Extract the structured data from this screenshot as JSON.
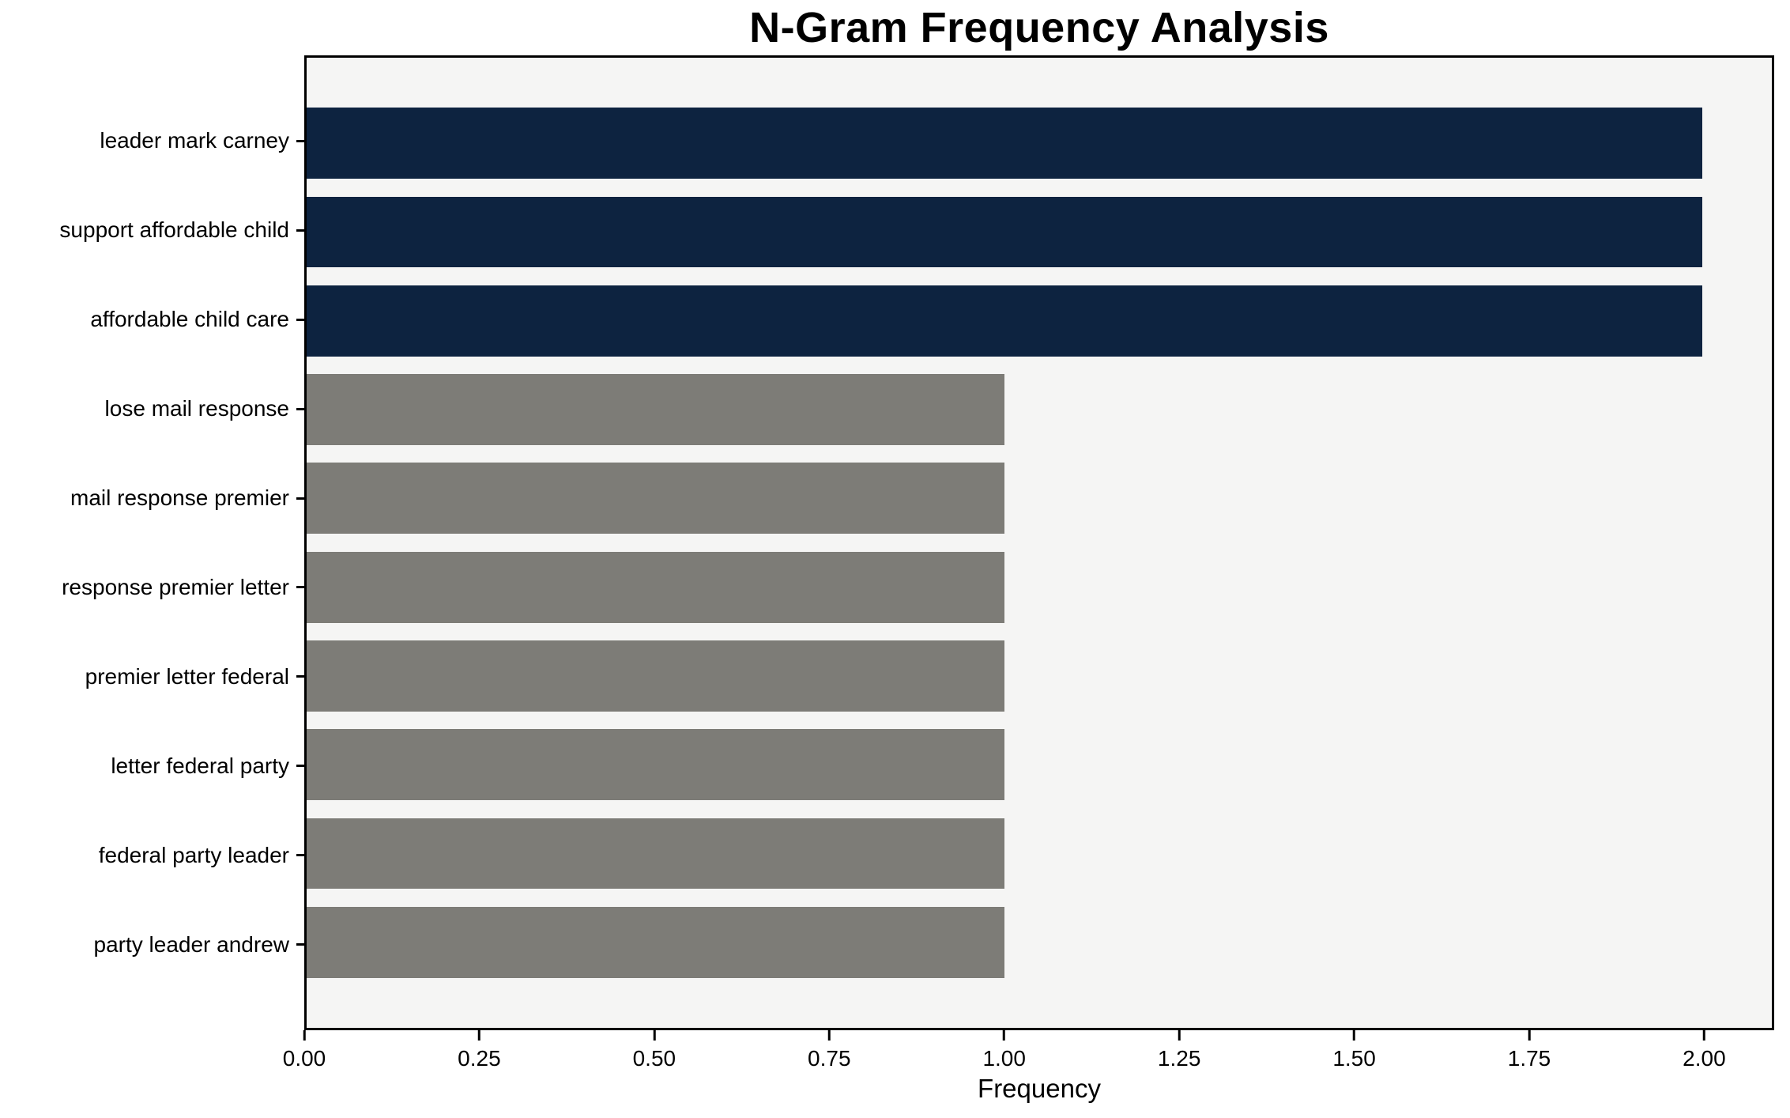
{
  "chart_data": {
    "type": "bar",
    "orientation": "horizontal",
    "title": "N-Gram Frequency Analysis",
    "xlabel": "Frequency",
    "ylabel": "",
    "categories": [
      "leader mark carney",
      "support affordable child",
      "affordable child care",
      "lose mail response",
      "mail response premier",
      "response premier letter",
      "premier letter federal",
      "letter federal party",
      "federal party leader",
      "party leader andrew"
    ],
    "values": [
      2,
      2,
      2,
      1,
      1,
      1,
      1,
      1,
      1,
      1
    ],
    "bar_colors": [
      "#0d2340",
      "#0d2340",
      "#0d2340",
      "#7d7c77",
      "#7d7c77",
      "#7d7c77",
      "#7d7c77",
      "#7d7c77",
      "#7d7c77",
      "#7d7c77"
    ],
    "xlim": [
      0,
      2.1
    ],
    "x_tick_values": [
      0,
      0.25,
      0.5,
      0.75,
      1.0,
      1.25,
      1.5,
      1.75,
      2.0
    ],
    "x_tick_labels": [
      "0.00",
      "0.25",
      "0.50",
      "0.75",
      "1.00",
      "1.25",
      "1.50",
      "1.75",
      "2.00"
    ],
    "grid": false,
    "legend": false,
    "plot_background": "#f5f5f4",
    "figure_background": "#ffffff",
    "spine_color": "#000000",
    "bar_height_fraction": 0.8
  }
}
